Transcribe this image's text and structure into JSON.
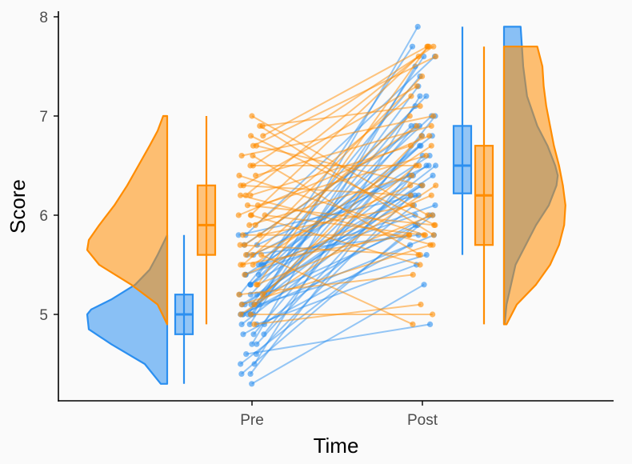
{
  "chart_data": {
    "type": "raincloud",
    "title": "",
    "xlabel": "Time",
    "ylabel": "Score",
    "categories": [
      "Pre",
      "Post"
    ],
    "ylim": [
      4.2,
      8.05
    ],
    "yticks": [
      5,
      6,
      7,
      8
    ],
    "grid": false,
    "legend": "none",
    "series": [
      {
        "color": "#2b8ff0",
        "box": {
          "Pre": {
            "min": 4.3,
            "q1": 4.8,
            "median": 5.0,
            "q3": 5.2,
            "max": 5.8
          },
          "Post": {
            "min": 5.6,
            "q1": 6.22,
            "median": 6.5,
            "q3": 6.9,
            "max": 7.9
          }
        },
        "density": {
          "Pre": {
            "y": [
              4.3,
              4.5,
              4.7,
              4.85,
              5.0,
              5.05,
              5.15,
              5.3,
              5.45,
              5.6,
              5.8
            ],
            "d": [
              0.08,
              0.28,
              0.7,
              0.98,
              1.0,
              0.95,
              0.7,
              0.4,
              0.22,
              0.12,
              0.0
            ]
          },
          "Post": {
            "y": [
              4.9,
              5.1,
              5.5,
              5.9,
              6.1,
              6.3,
              6.4,
              6.5,
              6.7,
              6.9,
              7.2,
              7.5,
              7.7,
              7.9
            ],
            "d": [
              0.01,
              0.04,
              0.18,
              0.5,
              0.7,
              0.82,
              0.84,
              0.8,
              0.68,
              0.52,
              0.36,
              0.3,
              0.28,
              0.26
            ]
          }
        },
        "pairs": [
          [
            4.3,
            5.3
          ],
          [
            4.4,
            5.9
          ],
          [
            4.4,
            6.6
          ],
          [
            4.5,
            6.0
          ],
          [
            4.5,
            7.2
          ],
          [
            4.6,
            4.9
          ],
          [
            4.6,
            6.2
          ],
          [
            4.7,
            7.5
          ],
          [
            4.7,
            6.4
          ],
          [
            4.8,
            6.8
          ],
          [
            4.8,
            5.7
          ],
          [
            4.8,
            7.0
          ],
          [
            4.9,
            6.3
          ],
          [
            4.9,
            6.1
          ],
          [
            4.9,
            7.6
          ],
          [
            4.9,
            5.5
          ],
          [
            5.0,
            6.5
          ],
          [
            5.0,
            6.9
          ],
          [
            5.0,
            7.9
          ],
          [
            5.0,
            6.0
          ],
          [
            5.0,
            7.3
          ],
          [
            5.0,
            5.8
          ],
          [
            5.1,
            6.4
          ],
          [
            5.1,
            7.1
          ],
          [
            5.1,
            6.7
          ],
          [
            5.1,
            5.6
          ],
          [
            5.1,
            6.2
          ],
          [
            5.2,
            6.9
          ],
          [
            5.2,
            7.4
          ],
          [
            5.2,
            6.5
          ],
          [
            5.2,
            5.9
          ],
          [
            5.3,
            6.3
          ],
          [
            5.3,
            7.0
          ],
          [
            5.3,
            6.7
          ],
          [
            5.4,
            6.0
          ],
          [
            5.4,
            7.7
          ],
          [
            5.4,
            6.6
          ],
          [
            5.5,
            6.1
          ],
          [
            5.5,
            6.8
          ],
          [
            5.5,
            7.2
          ],
          [
            5.6,
            6.4
          ],
          [
            5.6,
            5.8
          ],
          [
            5.7,
            6.9
          ],
          [
            5.7,
            6.5
          ],
          [
            5.8,
            7.6
          ],
          [
            5.8,
            6.2
          ]
        ]
      },
      {
        "color": "#ff8c00",
        "box": {
          "Pre": {
            "min": 4.9,
            "q1": 5.6,
            "median": 5.9,
            "q3": 6.3,
            "max": 7.0
          },
          "Post": {
            "min": 4.9,
            "q1": 5.7,
            "median": 6.2,
            "q3": 6.7,
            "max": 7.7
          }
        },
        "density": {
          "Pre": {
            "y": [
              4.9,
              5.1,
              5.3,
              5.5,
              5.65,
              5.75,
              5.9,
              6.1,
              6.3,
              6.5,
              6.7,
              6.85,
              7.0
            ],
            "d": [
              0.0,
              0.12,
              0.45,
              0.85,
              1.0,
              0.98,
              0.85,
              0.66,
              0.5,
              0.36,
              0.22,
              0.12,
              0.05
            ]
          },
          "Post": {
            "y": [
              4.9,
              5.1,
              5.3,
              5.5,
              5.7,
              5.9,
              6.1,
              6.3,
              6.5,
              6.7,
              6.9,
              7.1,
              7.3,
              7.5,
              7.7
            ],
            "d": [
              0.04,
              0.2,
              0.5,
              0.72,
              0.86,
              0.94,
              0.96,
              0.92,
              0.86,
              0.78,
              0.72,
              0.66,
              0.62,
              0.6,
              0.52
            ]
          }
        },
        "pairs": [
          [
            4.9,
            5.1
          ],
          [
            5.0,
            6.3
          ],
          [
            5.0,
            5.0
          ],
          [
            5.1,
            6.8
          ],
          [
            5.1,
            5.7
          ],
          [
            5.2,
            6.5
          ],
          [
            5.2,
            5.4
          ],
          [
            5.3,
            7.7
          ],
          [
            5.3,
            6.0
          ],
          [
            5.4,
            6.2
          ],
          [
            5.5,
            7.0
          ],
          [
            5.5,
            5.8
          ],
          [
            5.5,
            6.7
          ],
          [
            5.6,
            4.9
          ],
          [
            5.6,
            6.3
          ],
          [
            5.6,
            7.4
          ],
          [
            5.7,
            5.6
          ],
          [
            5.7,
            6.9
          ],
          [
            5.8,
            6.1
          ],
          [
            5.8,
            5.8
          ],
          [
            5.9,
            7.2
          ],
          [
            5.9,
            6.4
          ],
          [
            6.0,
            5.5
          ],
          [
            6.0,
            6.8
          ],
          [
            6.0,
            7.7
          ],
          [
            6.1,
            5.9
          ],
          [
            6.1,
            6.6
          ],
          [
            6.2,
            7.6
          ],
          [
            6.2,
            5.7
          ],
          [
            6.3,
            6.2
          ],
          [
            6.3,
            7.3
          ],
          [
            6.4,
            5.8
          ],
          [
            6.5,
            6.5
          ],
          [
            6.5,
            7.7
          ],
          [
            6.6,
            5.6
          ],
          [
            6.6,
            7.0
          ],
          [
            6.7,
            6.3
          ],
          [
            6.8,
            7.7
          ],
          [
            6.8,
            5.9
          ],
          [
            6.9,
            7.1
          ],
          [
            7.0,
            6.0
          ],
          [
            6.9,
            5.8
          ],
          [
            6.7,
            7.6
          ],
          [
            6.4,
            6.9
          ],
          [
            6.2,
            6.7
          ],
          [
            6.0,
            5.8
          ]
        ]
      }
    ]
  }
}
